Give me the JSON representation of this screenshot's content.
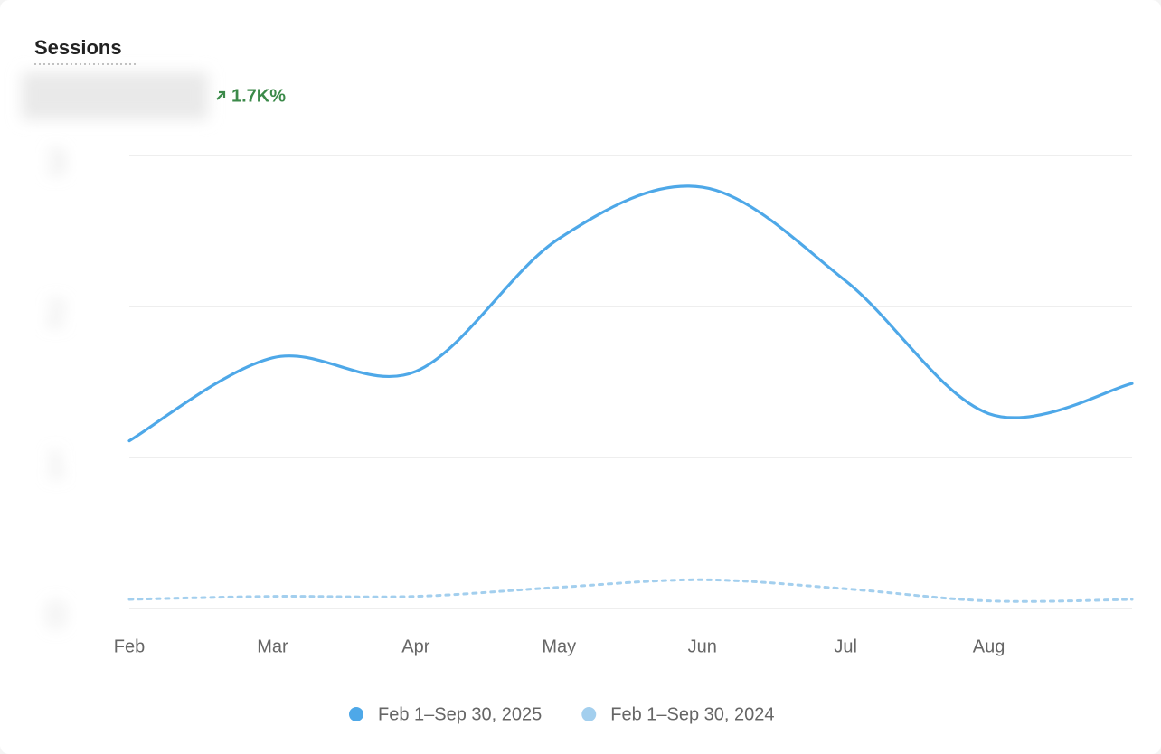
{
  "chart_data": {
    "type": "line",
    "title": "Sessions",
    "change": "1.7K%",
    "categories": [
      "Feb",
      "Mar",
      "Apr",
      "May",
      "Jun",
      "Jul",
      "Aug",
      null
    ],
    "series": [
      {
        "name": "Feb 1–Sep 30, 2025",
        "color": "#4ea8e8",
        "style": "solid",
        "values": [
          1.11,
          1.66,
          1.57,
          2.45,
          2.79,
          2.17,
          1.29,
          1.49
        ]
      },
      {
        "name": "Feb 1–Sep 30, 2024",
        "color": "#a3cfee",
        "style": "dashed",
        "values": [
          0.06,
          0.08,
          0.08,
          0.14,
          0.19,
          0.13,
          0.05,
          0.06
        ]
      }
    ],
    "ylim": [
      0,
      3
    ],
    "yticks": [
      0,
      1,
      2,
      3
    ],
    "grid": true
  }
}
